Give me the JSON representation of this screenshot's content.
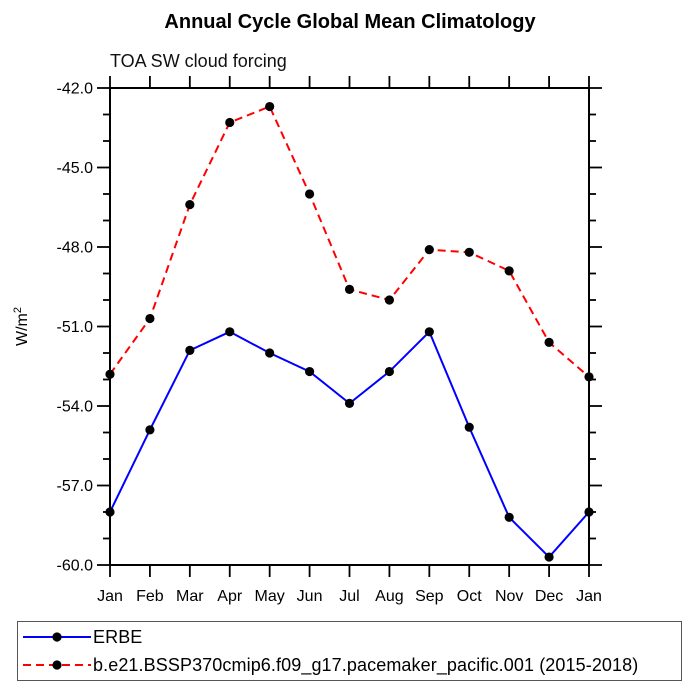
{
  "chart_data": {
    "type": "line",
    "title": "Annual Cycle Global Mean Climatology",
    "subtitle": "TOA SW cloud forcing",
    "categories": [
      "Jan",
      "Feb",
      "Mar",
      "Apr",
      "May",
      "Jun",
      "Jul",
      "Aug",
      "Sep",
      "Oct",
      "Nov",
      "Dec",
      "Jan"
    ],
    "ylabel": "W/m²",
    "ylim": [
      -60,
      -42
    ],
    "yticks_major": [
      -42,
      -45,
      -48,
      -51,
      -54,
      -57,
      -60
    ],
    "ytick_labels": [
      "-42.0",
      "-45.0",
      "-48.0",
      "-51.0",
      "-54.0",
      "-57.0",
      "-60.0"
    ],
    "yticks_minor_step": 1,
    "grid": false,
    "legend_position": "bottom",
    "series": [
      {
        "name": "ERBE",
        "color": "#0000ff",
        "line_style": "solid",
        "marker": "filled-circle",
        "marker_color": "#000000",
        "values": [
          -58.0,
          -54.9,
          -51.9,
          -51.2,
          -52.0,
          -52.7,
          -53.9,
          -52.7,
          -51.2,
          -54.8,
          -58.2,
          -59.7,
          -58.0
        ]
      },
      {
        "name": "b.e21.BSSP370cmip6.f09_g17.pacemaker_pacific.001 (2015-2018)",
        "color": "#ff0000",
        "line_style": "dashed",
        "marker": "filled-circle",
        "marker_color": "#000000",
        "values": [
          -52.8,
          -50.7,
          -46.4,
          -43.3,
          -42.7,
          -46.0,
          -49.6,
          -50.0,
          -48.1,
          -48.2,
          -48.9,
          -51.6,
          -52.9
        ]
      }
    ]
  },
  "colors": {
    "background": "#ffffff",
    "axis": "#000000",
    "text": "#000000",
    "erbe_line": "#0000ff",
    "model_line": "#ff0000",
    "marker": "#000000",
    "legend_border": "#555555"
  }
}
